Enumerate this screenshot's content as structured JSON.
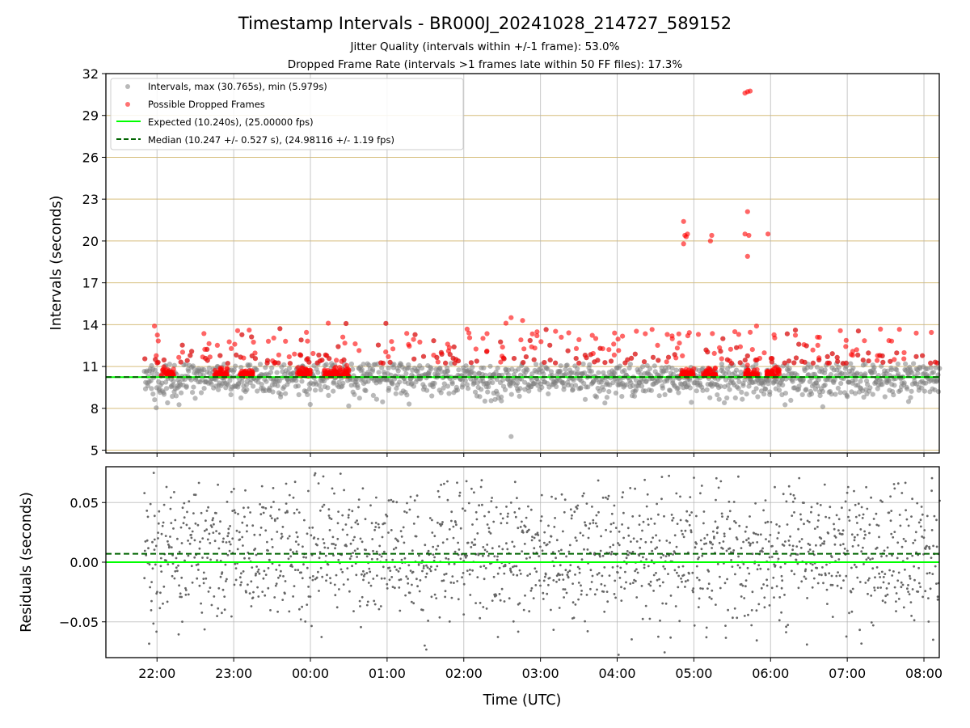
{
  "chart_data": [
    {
      "type": "scatter",
      "panel": "top",
      "title": "Timestamp Intervals - BR000J_20241028_214727_589152",
      "subtitle_lines": [
        "Jitter Quality (intervals within +/-1 frame): 53.0%",
        "Dropped Frame Rate (intervals >1 frames late within 50 FF files): 17.3%"
      ],
      "xlabel": "",
      "ylabel": "Intervals (seconds)",
      "ylim": [
        4.8,
        32
      ],
      "yticks": [
        5,
        8,
        11,
        14,
        17,
        20,
        23,
        26,
        29,
        32
      ],
      "ytick_labels": [
        "5",
        "8",
        "11",
        "14",
        "17",
        "20",
        "23",
        "26",
        "29",
        "32"
      ],
      "xlim": [
        "21:20",
        "08:12"
      ],
      "grid": true,
      "legend_position": "upper-left",
      "legend": [
        "Intervals, max (30.765s), min (5.979s)",
        "Possible Dropped Frames",
        "Expected (10.240s), (25.00000 fps)",
        "Median (10.247 +/- 0.527 s), (24.98116 +/- 1.19 fps)"
      ],
      "expected_interval": 10.24,
      "median_interval": 10.247,
      "series": [
        {
          "name": "Intervals, max (30.765s), min (5.979s)",
          "color": "#808080",
          "summary": {
            "max": 30.765,
            "min": 5.979,
            "median": 10.247,
            "spread": 0.527,
            "x_start": "21:50",
            "x_end": "08:12"
          }
        },
        {
          "name": "Possible Dropped Frames",
          "color": "#ff0000",
          "threshold": 10.32,
          "outliers": [
            {
              "x": "04:52",
              "y": 21.4
            },
            {
              "x": "04:53",
              "y": 20.4
            },
            {
              "x": "04:54",
              "y": 20.3
            },
            {
              "x": "04:55",
              "y": 20.5
            },
            {
              "x": "04:52",
              "y": 19.8
            },
            {
              "x": "05:13",
              "y": 20.0
            },
            {
              "x": "05:14",
              "y": 20.4
            },
            {
              "x": "05:40",
              "y": 30.6
            },
            {
              "x": "05:42",
              "y": 30.7
            },
            {
              "x": "05:44",
              "y": 30.75
            },
            {
              "x": "05:42",
              "y": 22.1
            },
            {
              "x": "05:40",
              "y": 20.5
            },
            {
              "x": "05:43",
              "y": 20.4
            },
            {
              "x": "05:42",
              "y": 18.9
            },
            {
              "x": "05:58",
              "y": 20.5
            },
            {
              "x": "05:49",
              "y": 13.9
            },
            {
              "x": "02:37",
              "y": 14.5
            },
            {
              "x": "02:33",
              "y": 14.1
            },
            {
              "x": "02:46",
              "y": 14.3
            },
            {
              "x": "00:14",
              "y": 14.1
            },
            {
              "x": "21:58",
              "y": 13.9
            }
          ]
        },
        {
          "name": "Expected (10.240s), (25.00000 fps)",
          "color": "#00ff00",
          "y": 10.24
        },
        {
          "name": "Median (10.247 +/- 0.527 s), (24.98116 +/- 1.19 fps)",
          "color": "#006400",
          "y": 10.247
        }
      ]
    },
    {
      "type": "scatter",
      "panel": "bottom",
      "xlabel": "Time (UTC)",
      "ylabel": "Residuals (seconds)",
      "ylim": [
        -0.08,
        0.08
      ],
      "yticks": [
        -0.05,
        0.0,
        0.05
      ],
      "ytick_labels": [
        "−0.05",
        "0.00",
        "0.05"
      ],
      "xticks": [
        "22:00",
        "23:00",
        "00:00",
        "01:00",
        "02:00",
        "03:00",
        "04:00",
        "05:00",
        "06:00",
        "07:00",
        "08:00"
      ],
      "grid": true,
      "series": [
        {
          "name": "",
          "color": "#666666",
          "summary": {
            "center": 0.007,
            "spread": 0.03,
            "x_start": "21:50",
            "x_end": "08:12"
          }
        },
        {
          "name": "",
          "color": "#00ff00",
          "y": 0.0
        },
        {
          "name": "",
          "color": "#006400",
          "y": 0.007
        }
      ]
    }
  ]
}
